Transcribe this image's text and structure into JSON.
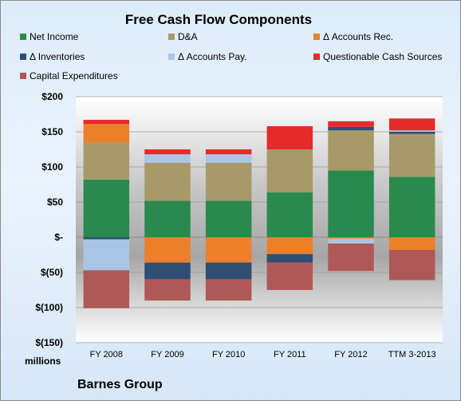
{
  "page": {
    "company": "Barnes Group",
    "unit_label": "millions"
  },
  "colors": {
    "net_income": "#2a8a4e",
    "da": "#a89a68",
    "accounts_rec": "#ec7f2a",
    "inventories": "#2f4e72",
    "accounts_pay": "#a9c6e6",
    "questionable": "#e72a2a",
    "capex": "#b05858"
  },
  "chart_data": {
    "type": "bar",
    "stacked": true,
    "title": "Free Cash Flow Components",
    "categories": [
      "FY 2008",
      "FY 2009",
      "FY 2010",
      "FY 2011",
      "FY 2012",
      "TTM 3-2013"
    ],
    "ylim": [
      -150,
      200
    ],
    "yticks": [
      200,
      150,
      100,
      50,
      0,
      -50,
      -100,
      -150
    ],
    "ytick_labels": [
      "$200",
      "$150",
      "$100",
      "$50",
      "$-",
      "$(50)",
      "$(100)",
      "$(150)"
    ],
    "legend_position": "top",
    "series": [
      {
        "key": "net_income",
        "name": "Net Income",
        "values": [
          82,
          52,
          52,
          64,
          95,
          86
        ]
      },
      {
        "key": "da",
        "name": "D&A",
        "values": [
          53,
          54,
          54,
          61,
          57,
          61
        ]
      },
      {
        "key": "accounts_rec",
        "name": "Δ Accounts Rec.",
        "values": [
          26,
          -36,
          -36,
          -24,
          -2,
          -18
        ]
      },
      {
        "key": "inventories",
        "name": "Δ Inventories",
        "values": [
          -3,
          -24,
          -24,
          -12,
          5,
          3
        ]
      },
      {
        "key": "accounts_pay",
        "name": "Δ Accounts Pay.",
        "values": [
          -44,
          12,
          12,
          0,
          -7,
          2
        ]
      },
      {
        "key": "questionable",
        "name": "Questionable Cash Sources",
        "values": [
          6,
          7,
          7,
          33,
          8,
          17
        ]
      },
      {
        "key": "capex",
        "name": "Capital Expenditures",
        "values": [
          -54,
          -30,
          -30,
          -39,
          -39,
          -43
        ]
      }
    ]
  }
}
